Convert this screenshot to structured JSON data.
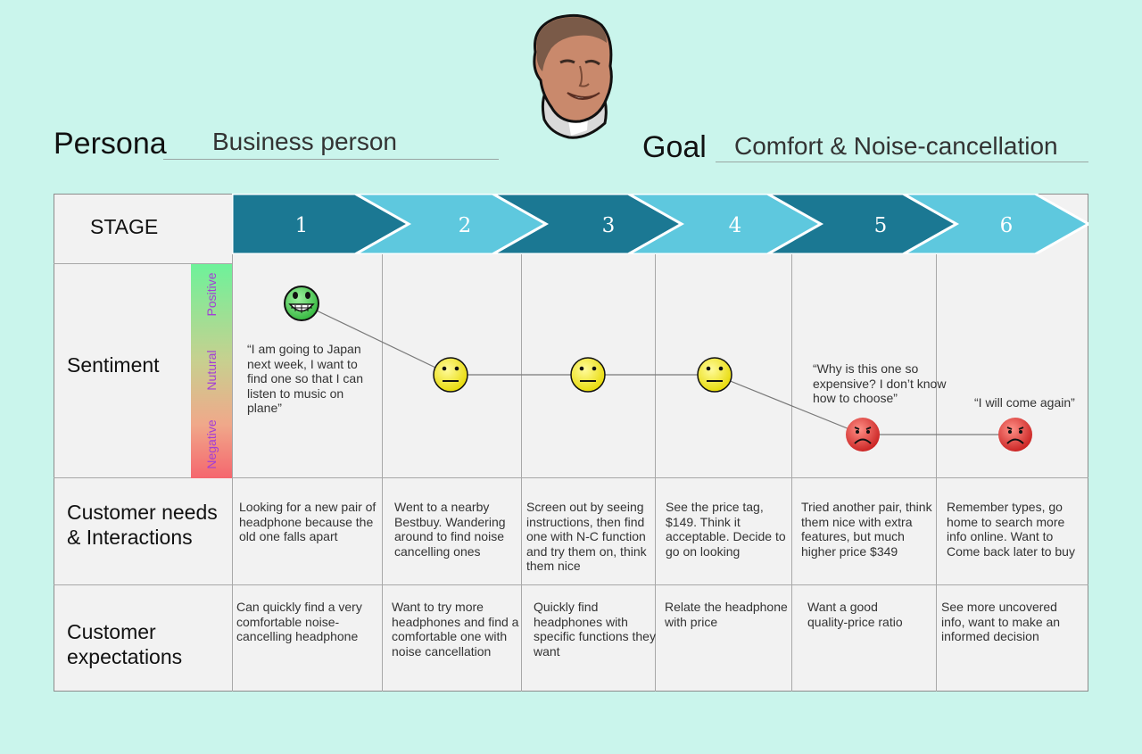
{
  "persona": {
    "label": "Persona",
    "value": "Business person"
  },
  "goal": {
    "label": "Goal",
    "value": "Comfort & Noise-cancellation"
  },
  "stage": {
    "label": "STAGE",
    "items": [
      "1",
      "2",
      "3",
      "4",
      "5",
      "6"
    ],
    "colors": {
      "dark": "#1b7893",
      "light": "#5ec8de"
    }
  },
  "sentiment": {
    "label": "Sentiment",
    "scale": {
      "positive": "Positive",
      "neutral": "Nutural",
      "negative": "Negative"
    },
    "points": [
      "grinning",
      "neutral",
      "neutral",
      "neutral",
      "sad",
      "sad"
    ],
    "quotes": {
      "q1": "“I am going to Japan next week, I want to find one so that I can listen to music on plane”",
      "q5": "“Why is this one so expensive? I don’t know how to choose”",
      "q6": "“I will come again”"
    },
    "face_colors": {
      "happy": "#5ad35f",
      "neutral": "#f4ea2a",
      "sad": "#e23b35"
    }
  },
  "needs": {
    "label": "Customer needs & Interactions",
    "cells": [
      "Looking for a new pair of headphone because the old one falls apart",
      "Went to a nearby Bestbuy. Wandering around to find noise cancelling ones",
      "Screen out by seeing instructions, then find one with N-C function and try them on, think them nice",
      "See the price tag, $149. Think it acceptable. Decide to go on looking",
      "Tried another pair, think them nice with extra features, but much higher price $349",
      "Remember types, go home to search more info online. Want to Come back later to buy"
    ]
  },
  "expectations": {
    "label": "Customer expectations",
    "cells": [
      "Can quickly find a very comfortable noise-cancelling headphone",
      "Want to try more headphones and find a comfortable one with noise cancellation",
      "Quickly find headphones with specific functions they want",
      "Relate the headphone with price",
      "Want a good quality-price ratio",
      "See more uncovered info, want to make an informed decision"
    ]
  }
}
